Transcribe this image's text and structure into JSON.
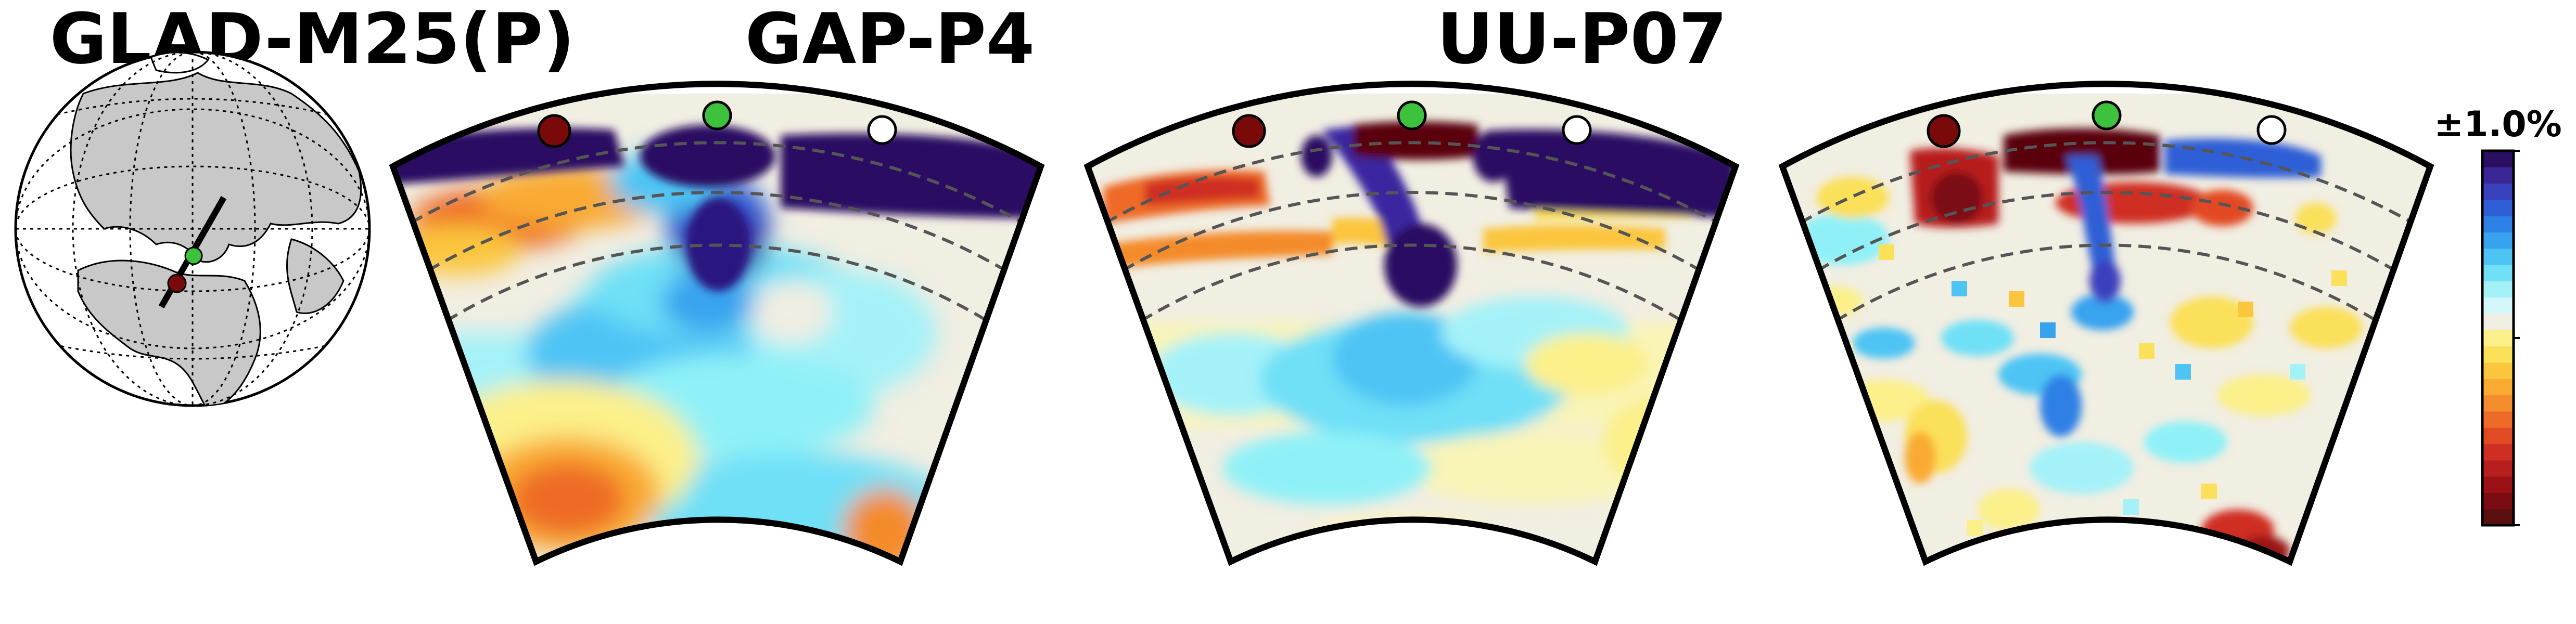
{
  "panels": [
    {
      "title": "GLAD-M25(P)"
    },
    {
      "title": "GAP-P4"
    },
    {
      "title": "UU-P07"
    }
  ],
  "colorbar": {
    "label": "±1.0%",
    "colors": [
      "#5b0f10",
      "#7a0c12",
      "#9a1216",
      "#b71e1e",
      "#cf2e22",
      "#e24a24",
      "#ee6a27",
      "#f48b2c",
      "#f9aa33",
      "#fbc63d",
      "#fbe05a",
      "#fbf08a",
      "#f1eee2",
      "#d3f7fb",
      "#a4f2f8",
      "#6fe0f6",
      "#4ec4f4",
      "#37a3ef",
      "#2d80e6",
      "#2f5fd6",
      "#3a41bd",
      "#3a2795",
      "#2a0f63"
    ]
  },
  "markers": {
    "west": "#7a0a0a",
    "center": "#3cc23c",
    "east": "#ffffff"
  },
  "palette": {
    "dark_red": "#5a0608",
    "red": "#d02a20",
    "orange": "#f2822b",
    "yellow": "#fbe35a",
    "pale_yellow": "#f9f4b8",
    "white": "#f1eee2",
    "cyan": "#8ff1f7",
    "light_blue": "#4ec4f4",
    "blue": "#2d80e6",
    "dark_blue": "#2a0f63"
  }
}
